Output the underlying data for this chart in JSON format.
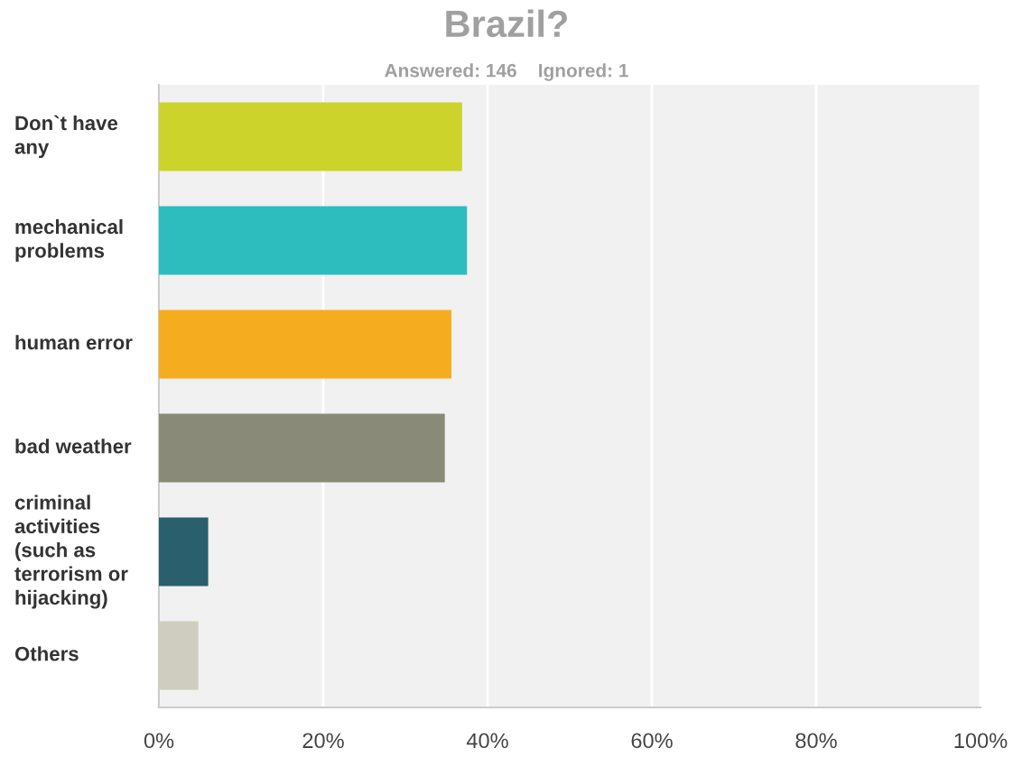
{
  "chart_data": {
    "type": "bar",
    "orientation": "horizontal",
    "title": "Brazil?",
    "subtitle": "Answered: 146    Ignored: 1",
    "categories": [
      "Don`t have\nany",
      "mechanical\nproblems",
      "human error",
      "bad weather",
      "criminal\nactivities\n(such as\nterrorism or\nhijacking)",
      "Others"
    ],
    "values": [
      36.9,
      37.5,
      35.6,
      34.8,
      6.0,
      4.8
    ],
    "colors": [
      "#ccd32a",
      "#2ebdbe",
      "#f5ac1e",
      "#898a78",
      "#2a5f6d",
      "#cfcdbf"
    ],
    "xlim": [
      0,
      100
    ],
    "xticks": [
      {
        "value": 0,
        "label": "0%"
      },
      {
        "value": 20,
        "label": "20%"
      },
      {
        "value": 40,
        "label": "40%"
      },
      {
        "value": 60,
        "label": "60%"
      },
      {
        "value": 80,
        "label": "80%"
      },
      {
        "value": 100,
        "label": "100%"
      }
    ],
    "grid": "x",
    "legend": false
  }
}
